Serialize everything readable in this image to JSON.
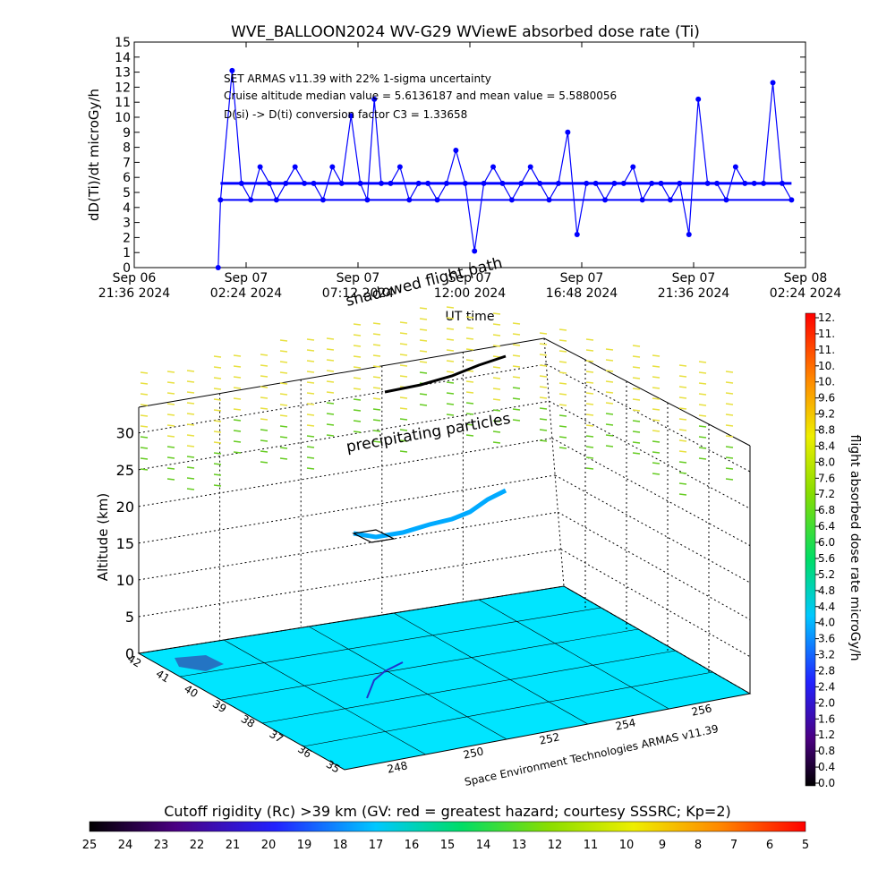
{
  "chart_data": [
    {
      "type": "line",
      "title": "WVE_BALLOON2024 WV-G29 WViewE absorbed dose rate (Ti)",
      "ylabel": "dD(Ti)/dt microGy/h",
      "xlabel": "UT time",
      "ylim": [
        0,
        15
      ],
      "yticks": [
        "0",
        "1",
        "2",
        "3",
        "4",
        "5",
        "6",
        "7",
        "8",
        "9",
        "10",
        "11",
        "12",
        "13",
        "14",
        "15"
      ],
      "xticks": [
        {
          "l1": "Sep 06",
          "l2": "21:36 2024"
        },
        {
          "l1": "Sep 07",
          "l2": "02:24 2024"
        },
        {
          "l1": "Sep 07",
          "l2": "07:12 2024"
        },
        {
          "l1": "Sep 07",
          "l2": "12:00 2024"
        },
        {
          "l1": "Sep 07",
          "l2": "16:48 2024"
        },
        {
          "l1": "Sep 07",
          "l2": "21:36 2024"
        },
        {
          "l1": "Sep 08",
          "l2": "02:24 2024"
        }
      ],
      "annotations": [
        "SET ARMAS v11.39 with 22% 1-sigma uncertainty",
        "Cruise altitude median value = 5.6136187 and mean value = 5.5880056",
        "D(si) -> D(ti) conversion factor C3 = 1.33658"
      ],
      "overlay_labels": [
        "shadowed flight path",
        "Sep 07"
      ],
      "series": [
        {
          "color": "#0000ff",
          "x_hours_from_start": [
            3.6,
            3.7,
            4.2,
            4.6,
            5.0,
            5.4,
            5.8,
            6.1,
            6.5,
            6.9,
            7.3,
            7.7,
            8.1,
            8.5,
            8.9,
            9.3,
            9.7,
            10.0,
            10.3,
            10.6,
            11.0,
            11.4,
            11.8,
            12.2,
            12.6,
            13.0,
            13.4,
            13.8,
            14.2,
            14.6,
            15.0,
            15.4,
            15.8,
            16.2,
            16.6,
            17.0,
            17.4,
            17.8,
            18.2,
            18.6,
            19.0,
            19.4,
            19.8,
            20.2,
            20.6,
            21.0,
            21.4,
            21.8,
            22.2,
            22.6,
            23.0,
            23.4,
            23.8,
            24.2,
            24.6,
            25.0,
            25.4,
            25.8,
            26.2,
            26.6,
            27.0,
            27.4,
            27.8,
            28.2
          ],
          "values": [
            0.0,
            4.5,
            13.1,
            5.6,
            4.5,
            6.7,
            5.6,
            4.5,
            5.6,
            6.7,
            5.6,
            5.6,
            4.5,
            6.7,
            5.6,
            10.1,
            5.6,
            4.5,
            11.2,
            5.6,
            5.6,
            6.7,
            4.5,
            5.6,
            5.6,
            4.5,
            5.6,
            7.8,
            5.6,
            1.1,
            5.6,
            6.7,
            5.6,
            4.5,
            5.6,
            6.7,
            5.6,
            4.5,
            5.6,
            9.0,
            2.2,
            5.6,
            5.6,
            4.5,
            5.6,
            5.6,
            6.7,
            4.5,
            5.6,
            5.6,
            4.5,
            5.6,
            2.2,
            11.2,
            5.6,
            5.6,
            4.5,
            6.7,
            5.6,
            5.6,
            5.6,
            12.3,
            5.6,
            4.5
          ]
        }
      ]
    },
    {
      "type": "heatmap",
      "title": "",
      "zlabel": "Altitude (km)",
      "zticks": [
        "0",
        "5",
        "10",
        "15",
        "20",
        "25",
        "30"
      ],
      "lat_ticks": [
        "42",
        "41",
        "40",
        "39",
        "38",
        "37",
        "36",
        "35"
      ],
      "lon_ticks": [
        "248",
        "250",
        "252",
        "254",
        "256"
      ],
      "text_labels": [
        "precipitating particles",
        "Space Environment Technologies ARMAS v11.39"
      ],
      "dose_colorbar": {
        "label": "flight absorbed dose rate microGy/h",
        "ticks": [
          "12.",
          "11.",
          "11.",
          "10.",
          "10.",
          "9.6",
          "9.2",
          "8.8",
          "8.4",
          "8.0",
          "7.6",
          "7.2",
          "6.8",
          "6.4",
          "6.0",
          "5.6",
          "5.2",
          "4.8",
          "4.4",
          "4.0",
          "3.6",
          "3.2",
          "2.8",
          "2.4",
          "2.0",
          "1.6",
          "1.2",
          "0.8",
          "0.4",
          "0.0"
        ]
      },
      "rigidity_colorbar": {
        "label": "Cutoff rigidity (Rc) >39 km (GV: red = greatest hazard; courtesy SSSRC; Kp=2)",
        "ticks": [
          "25",
          "24",
          "23",
          "22",
          "21",
          "20",
          "19",
          "18",
          "17",
          "16",
          "15",
          "14",
          "13",
          "12",
          "11",
          "10",
          "9",
          "8",
          "7",
          "6",
          "5"
        ]
      }
    }
  ]
}
